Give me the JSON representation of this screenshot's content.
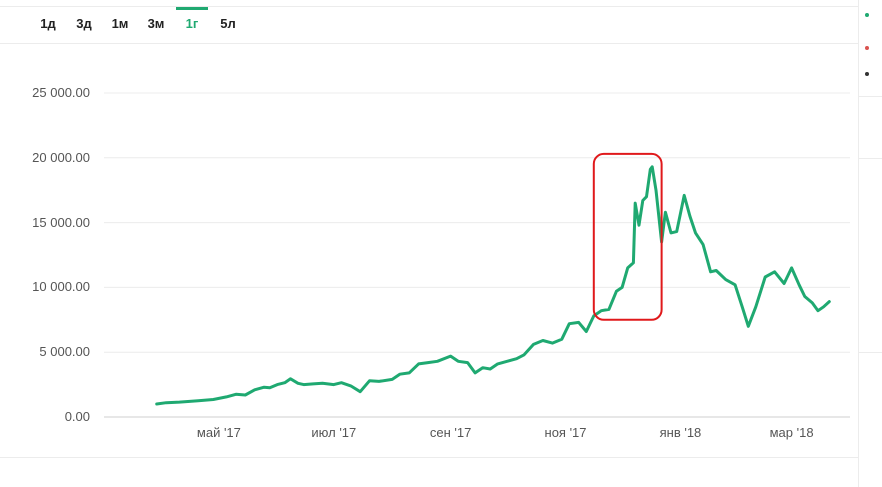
{
  "tabs": [
    {
      "label": "1д",
      "active": false
    },
    {
      "label": "3д",
      "active": false
    },
    {
      "label": "1м",
      "active": false
    },
    {
      "label": "3м",
      "active": false
    },
    {
      "label": "1г",
      "active": true
    },
    {
      "label": "5л",
      "active": false
    }
  ],
  "colors": {
    "line": "#1fa971",
    "highlight": "#e0191b",
    "active_tab": "#1fa971"
  },
  "chart_data": {
    "type": "line",
    "ylim": [
      0,
      26000
    ],
    "yticks": [
      {
        "value": 0,
        "label": "0.00"
      },
      {
        "value": 5000,
        "label": "5 000.00"
      },
      {
        "value": 10000,
        "label": "10 000.00"
      },
      {
        "value": 15000,
        "label": "15 000.00"
      },
      {
        "value": 20000,
        "label": "20 000.00"
      },
      {
        "value": 25000,
        "label": "25 000.00"
      }
    ],
    "xticks": [
      {
        "date": "2017-05-01",
        "label": "май '17"
      },
      {
        "date": "2017-07-01",
        "label": "июл '17"
      },
      {
        "date": "2017-09-01",
        "label": "сен '17"
      },
      {
        "date": "2017-11-01",
        "label": "ноя '17"
      },
      {
        "date": "2018-01-01",
        "label": "янв '18"
      },
      {
        "date": "2018-03-01",
        "label": "мар '18"
      }
    ],
    "highlight_box": {
      "x_from": "2017-11-16",
      "x_to": "2017-12-22",
      "y_from": 7500,
      "y_to": 20300
    },
    "series": [
      {
        "x": [
          "2017-03-29",
          "2017-04-03",
          "2017-04-10",
          "2017-04-20",
          "2017-04-28",
          "2017-05-05",
          "2017-05-10",
          "2017-05-15",
          "2017-05-20",
          "2017-05-25",
          "2017-05-28",
          "2017-06-01",
          "2017-06-05",
          "2017-06-08",
          "2017-06-12",
          "2017-06-15",
          "2017-06-20",
          "2017-06-25",
          "2017-07-01",
          "2017-07-05",
          "2017-07-10",
          "2017-07-15",
          "2017-07-20",
          "2017-07-25",
          "2017-08-01",
          "2017-08-05",
          "2017-08-10",
          "2017-08-15",
          "2017-08-20",
          "2017-08-25",
          "2017-09-01",
          "2017-09-05",
          "2017-09-10",
          "2017-09-14",
          "2017-09-18",
          "2017-09-22",
          "2017-09-26",
          "2017-10-01",
          "2017-10-06",
          "2017-10-10",
          "2017-10-15",
          "2017-10-20",
          "2017-10-25",
          "2017-10-30",
          "2017-11-03",
          "2017-11-08",
          "2017-11-12",
          "2017-11-16",
          "2017-11-20",
          "2017-11-24",
          "2017-11-28",
          "2017-12-01",
          "2017-12-04",
          "2017-12-07",
          "2017-12-08",
          "2017-12-10",
          "2017-12-12",
          "2017-12-14",
          "2017-12-16",
          "2017-12-17",
          "2017-12-19",
          "2017-12-22",
          "2017-12-24",
          "2017-12-27",
          "2017-12-30",
          "2018-01-03",
          "2018-01-06",
          "2018-01-09",
          "2018-01-13",
          "2018-01-17",
          "2018-01-20",
          "2018-01-25",
          "2018-01-30",
          "2018-02-03",
          "2018-02-06",
          "2018-02-10",
          "2018-02-15",
          "2018-02-20",
          "2018-02-25",
          "2018-03-01",
          "2018-03-05",
          "2018-03-08",
          "2018-03-12",
          "2018-03-15",
          "2018-03-18",
          "2018-03-21"
        ],
        "y": [
          1000,
          1100,
          1150,
          1250,
          1350,
          1550,
          1750,
          1700,
          2100,
          2300,
          2250,
          2500,
          2650,
          2950,
          2600,
          2500,
          2550,
          2600,
          2500,
          2650,
          2400,
          1950,
          2800,
          2750,
          2900,
          3300,
          3400,
          4100,
          4200,
          4300,
          4700,
          4300,
          4200,
          3400,
          3800,
          3700,
          4100,
          4300,
          4500,
          4800,
          5600,
          5900,
          5700,
          6000,
          7200,
          7300,
          6600,
          7800,
          8200,
          8300,
          9700,
          10000,
          11500,
          11900,
          16500,
          14800,
          16700,
          17000,
          19100,
          19300,
          17500,
          13500,
          15800,
          14200,
          14300,
          17100,
          15500,
          14200,
          13300,
          11200,
          11300,
          10600,
          10200,
          8400,
          7000,
          8500,
          10800,
          11200,
          10300,
          11500,
          10200,
          9300,
          8800,
          8200,
          8500,
          8900
        ]
      }
    ]
  }
}
